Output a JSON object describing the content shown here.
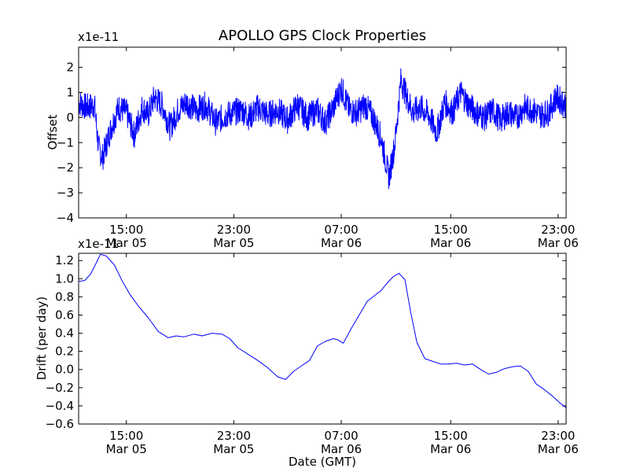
{
  "chart_data": [
    {
      "type": "line",
      "title": "APOLLO GPS Clock Properties",
      "ylabel": "Offset",
      "xlabel": "",
      "y_offset_text": "x1e-11",
      "ylim": [
        -4,
        2.8
      ],
      "yticks": [
        {
          "value": -4,
          "label": "−4"
        },
        {
          "value": -3,
          "label": "−3"
        },
        {
          "value": -2,
          "label": "−2"
        },
        {
          "value": -1,
          "label": "−1"
        },
        {
          "value": 0,
          "label": "0"
        },
        {
          "value": 1,
          "label": "1"
        },
        {
          "value": 2,
          "label": "2"
        }
      ],
      "xlim_hours": [
        11,
        35.5
      ],
      "xticks": [
        {
          "value": 13.4,
          "line1": "15:00",
          "line2": "Mar 05"
        },
        {
          "value": 18.8,
          "line1": "23:00",
          "line2": "Mar 05"
        },
        {
          "value": 24.2,
          "line1": "07:00",
          "line2": "Mar 06"
        },
        {
          "value": 29.7,
          "line1": "15:00",
          "line2": "Mar 06"
        },
        {
          "value": 35.1,
          "line1": "23:00",
          "line2": "Mar 06"
        }
      ],
      "series": [
        {
          "color": "#0000ff",
          "x": [
            11.0,
            11.4,
            11.8,
            12.0,
            12.2,
            12.6,
            13.0,
            13.4,
            13.8,
            14.2,
            14.5,
            14.8,
            15.2,
            15.6,
            16.0,
            16.4,
            16.9,
            17.4,
            17.9,
            18.4,
            18.8,
            19.2,
            19.6,
            20.0,
            20.5,
            21.0,
            21.5,
            22.0,
            22.5,
            23.0,
            23.4,
            23.8,
            24.2,
            24.6,
            25.0,
            25.4,
            25.8,
            26.2,
            26.6,
            26.9,
            27.2,
            27.5,
            27.8,
            28.2,
            28.6,
            29.0,
            29.4,
            29.8,
            30.2,
            30.6,
            31.0,
            31.4,
            31.8,
            32.2,
            32.6,
            33.0,
            33.4,
            33.8,
            34.2,
            34.6,
            35.0,
            35.5
          ],
          "y": [
            0.6,
            0.4,
            0.5,
            -1.2,
            -1.6,
            -0.5,
            0.4,
            0.2,
            -0.7,
            0.4,
            0.1,
            0.8,
            0.5,
            -0.4,
            0.3,
            0.6,
            0.3,
            0.5,
            -0.2,
            0.1,
            0.2,
            0.3,
            0.0,
            0.4,
            0.1,
            0.3,
            -0.1,
            0.5,
            0.0,
            0.3,
            -0.2,
            0.4,
            1.2,
            0.3,
            0.2,
            0.5,
            0.0,
            -0.8,
            -2.4,
            -1.0,
            1.5,
            0.8,
            0.2,
            0.4,
            0.1,
            -0.6,
            0.6,
            0.2,
            1.0,
            0.5,
            0.2,
            0.0,
            0.3,
            -0.1,
            0.2,
            0.0,
            0.4,
            0.3,
            0.1,
            0.2,
            0.8,
            0.5
          ]
        }
      ]
    },
    {
      "type": "line",
      "title": "",
      "ylabel": "Drift (per day)",
      "xlabel": "Date (GMT)",
      "y_offset_text": "x1e-11",
      "ylim": [
        -0.6,
        1.28
      ],
      "yticks": [
        {
          "value": -0.6,
          "label": "−0.6"
        },
        {
          "value": -0.4,
          "label": "−0.4"
        },
        {
          "value": -0.2,
          "label": "−0.2"
        },
        {
          "value": 0.0,
          "label": "0.0"
        },
        {
          "value": 0.2,
          "label": "0.2"
        },
        {
          "value": 0.4,
          "label": "0.4"
        },
        {
          "value": 0.6,
          "label": "0.6"
        },
        {
          "value": 0.8,
          "label": "0.8"
        },
        {
          "value": 1.0,
          "label": "1.0"
        },
        {
          "value": 1.2,
          "label": "1.2"
        }
      ],
      "xlim_hours": [
        11,
        35.5
      ],
      "xticks": [
        {
          "value": 13.4,
          "line1": "15:00",
          "line2": "Mar 05"
        },
        {
          "value": 18.8,
          "line1": "23:00",
          "line2": "Mar 05"
        },
        {
          "value": 24.2,
          "line1": "07:00",
          "line2": "Mar 06"
        },
        {
          "value": 29.7,
          "line1": "15:00",
          "line2": "Mar 06"
        },
        {
          "value": 35.1,
          "line1": "23:00",
          "line2": "Mar 06"
        }
      ],
      "series": [
        {
          "color": "#0000ff",
          "x": [
            11.0,
            11.3,
            11.6,
            11.9,
            12.1,
            12.4,
            12.8,
            13.2,
            13.6,
            14.0,
            14.5,
            15.0,
            15.5,
            15.9,
            16.3,
            16.8,
            17.2,
            17.7,
            18.2,
            18.6,
            19.0,
            19.5,
            20.0,
            20.5,
            21.0,
            21.4,
            21.8,
            22.2,
            22.6,
            23.0,
            23.4,
            23.8,
            24.0,
            24.3,
            24.7,
            25.1,
            25.5,
            25.9,
            26.2,
            26.5,
            26.8,
            27.1,
            27.4,
            27.7,
            28.0,
            28.4,
            28.8,
            29.2,
            29.6,
            30.0,
            30.4,
            30.8,
            31.2,
            31.6,
            32.0,
            32.4,
            32.8,
            33.2,
            33.6,
            34.0,
            34.4,
            34.8,
            35.2,
            35.5
          ],
          "y": [
            0.97,
            0.98,
            1.05,
            1.18,
            1.27,
            1.25,
            1.15,
            0.97,
            0.82,
            0.7,
            0.57,
            0.42,
            0.35,
            0.37,
            0.36,
            0.39,
            0.37,
            0.4,
            0.39,
            0.34,
            0.24,
            0.17,
            0.1,
            0.02,
            -0.08,
            -0.11,
            -0.02,
            0.04,
            0.1,
            0.26,
            0.31,
            0.34,
            0.33,
            0.29,
            0.45,
            0.6,
            0.75,
            0.82,
            0.87,
            0.95,
            1.02,
            1.06,
            0.99,
            0.62,
            0.3,
            0.12,
            0.09,
            0.06,
            0.06,
            0.07,
            0.05,
            0.06,
            0.0,
            -0.05,
            -0.03,
            0.01,
            0.03,
            0.04,
            -0.02,
            -0.16,
            -0.22,
            -0.29,
            -0.37,
            -0.42
          ]
        }
      ]
    }
  ]
}
